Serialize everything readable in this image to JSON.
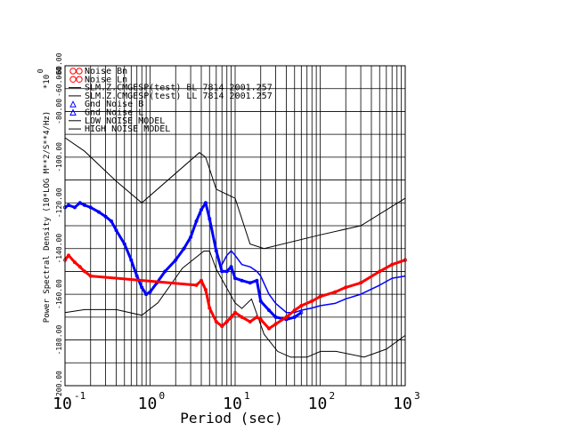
{
  "chart_data": {
    "type": "line",
    "xlabel": "Period (sec)",
    "ylabel": "Power Spectral Density (10*LOG M**2/S**4/Hz)",
    "y_multiplier_label": "*10",
    "y_multiplier_exp": "0",
    "x_scale": "log",
    "xlim": [
      0.1,
      1000
    ],
    "ylim": [
      -200,
      -60
    ],
    "grid": true,
    "y_ticks": [
      "-200.00",
      "-180.00",
      "-160.00",
      "-140.00",
      "-120.00",
      "-100.00",
      "-80.00",
      "-60.00",
      "-60.000"
    ],
    "x_tick_labels": [
      {
        "base": "10",
        "exp": "-1"
      },
      {
        "base": "10",
        "exp": "0"
      },
      {
        "base": "10",
        "exp": "1"
      },
      {
        "base": "10",
        "exp": "2"
      },
      {
        "base": "10",
        "exp": "3"
      }
    ],
    "legend": [
      {
        "label": "Noise Bn",
        "symbol": "circle",
        "color": "#ff0000"
      },
      {
        "label": "Noise Ln",
        "symbol": "circle",
        "color": "#ff0000"
      },
      {
        "label": "SLM.Z.CMGESP(test) BL 7814 2001.257",
        "symbol": "line",
        "color": "#000000"
      },
      {
        "label": "SLM.Z.CMGESP(test) LL 7814 2001.257",
        "symbol": "line",
        "color": "#000000"
      },
      {
        "label": "Gnd Noise B",
        "symbol": "triangle",
        "color": "#0000ff"
      },
      {
        "label": "Gnd Noise L",
        "symbol": "triangle",
        "color": "#0000ff"
      },
      {
        "label": "LOW NOISE MODEL",
        "symbol": "line",
        "color": "#000000"
      },
      {
        "label": "HIGH NOISE MODEL",
        "symbol": "line",
        "color": "#000000"
      }
    ],
    "series": [
      {
        "name": "Gnd Noise B",
        "color": "#0000ff",
        "style": "thick-line",
        "x": [
          0.1,
          0.11,
          0.13,
          0.15,
          0.17,
          0.2,
          0.25,
          0.3,
          0.35,
          0.4,
          0.5,
          0.6,
          0.7,
          0.8,
          0.9,
          1.0,
          1.2,
          1.5,
          2.0,
          2.5,
          3.0,
          3.5,
          4.0,
          4.5,
          5.0,
          6.0,
          7.0,
          8.0,
          9.0,
          10,
          12,
          15,
          18,
          20,
          25,
          30,
          40,
          50,
          60
        ],
        "y": [
          -122,
          -121,
          -122,
          -120,
          -121,
          -122,
          -124,
          -126,
          -128,
          -132,
          -138,
          -145,
          -152,
          -157,
          -160,
          -159,
          -155,
          -150,
          -145,
          -140,
          -135,
          -128,
          -123,
          -120,
          -127,
          -141,
          -150,
          -150,
          -148,
          -153,
          -154,
          -155,
          -154,
          -163,
          -167,
          -170,
          -171,
          -170,
          -168
        ]
      },
      {
        "name": "Gnd Noise L",
        "color": "#0000ff",
        "style": "thin-line",
        "x": [
          7.0,
          8.0,
          9.0,
          10,
          12,
          15,
          18,
          20,
          25,
          30,
          40,
          50,
          60,
          80,
          100,
          150,
          200,
          300,
          500,
          700,
          1000
        ],
        "y": [
          -147,
          -143,
          -141,
          -143,
          -147,
          -148,
          -150,
          -152,
          -160,
          -164,
          -168,
          -168,
          -167,
          -166,
          -165,
          -164,
          -162,
          -160,
          -156,
          -153,
          -152
        ]
      },
      {
        "name": "Noise Bn",
        "color": "#ff0000",
        "style": "thick-line",
        "x": [
          0.1,
          0.11,
          0.13,
          0.15,
          0.17,
          0.2,
          3.5,
          4.0,
          4.5,
          5.0,
          6.0,
          7.0,
          8.0,
          9.0,
          10,
          12,
          15,
          18,
          20,
          25,
          30,
          40,
          50,
          60,
          80,
          100,
          150,
          200,
          300,
          500,
          700,
          1000
        ],
        "y": [
          -145,
          -143,
          -146,
          -148,
          -150,
          -152,
          -156,
          -154,
          -158,
          -166,
          -172,
          -174,
          -172,
          -170,
          -168,
          -170,
          -172,
          -170,
          -171,
          -175,
          -173,
          -170,
          -167,
          -165,
          -163,
          -161,
          -159,
          -157,
          -155,
          -150,
          -147,
          -145
        ]
      }
    ],
    "noise_models": [
      {
        "name": "HIGH NOISE MODEL",
        "x": [
          0.1,
          0.17,
          0.4,
          0.8,
          3.8,
          4.5,
          6,
          10,
          15,
          21.9,
          100,
          300,
          1000
        ],
        "y": [
          -91.5,
          -97.4,
          -110.5,
          -120,
          -98,
          -100,
          -114,
          -118,
          -138,
          -140,
          -134,
          -130,
          -118
        ]
      },
      {
        "name": "LOW NOISE MODEL",
        "x": [
          0.1,
          0.17,
          0.4,
          0.8,
          1.24,
          2.4,
          4.3,
          5.0,
          6.0,
          10,
          12,
          15.6,
          21.9,
          31.6,
          45,
          70,
          101,
          154,
          328,
          600,
          1000
        ],
        "y": [
          -168,
          -166.7,
          -166.7,
          -169.2,
          -163.7,
          -148.6,
          -141.1,
          -141.1,
          -149,
          -163.8,
          -166.2,
          -162.1,
          -177.5,
          -185,
          -187.5,
          -187.5,
          -185,
          -185,
          -187.5,
          -184,
          -178
        ]
      }
    ]
  }
}
